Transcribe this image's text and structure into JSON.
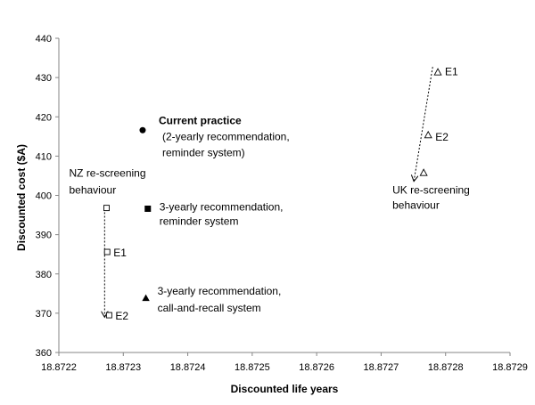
{
  "chart_data": {
    "type": "scatter",
    "title": "",
    "xlabel": "Discounted life years",
    "ylabel": "Discounted cost ($A)",
    "xlim": [
      18.8722,
      18.8729
    ],
    "ylim": [
      360,
      440
    ],
    "x_ticks": [
      "18.8722",
      "18.8723",
      "18.8724",
      "18.8725",
      "18.8726",
      "18.8727",
      "18.8728",
      "18.8729"
    ],
    "y_ticks": [
      "360",
      "370",
      "380",
      "390",
      "400",
      "410",
      "420",
      "430",
      "440"
    ],
    "x_tick_values": [
      18.8722,
      18.8723,
      18.8724,
      18.8725,
      18.8726,
      18.8727,
      18.8728,
      18.8729
    ],
    "y_tick_values": [
      360,
      370,
      380,
      390,
      400,
      410,
      420,
      430,
      440
    ],
    "grid": false,
    "points": [
      {
        "id": "current-practice",
        "x": 18.87233,
        "y": 416.6,
        "marker": "circle-filled",
        "label_lines": [
          "Current practice",
          "(2-yearly recommendation,",
          "reminder system)"
        ]
      },
      {
        "id": "3yr-reminder",
        "x": 18.872338,
        "y": 396.6,
        "marker": "square-filled",
        "label_lines": [
          "3-yearly recommendation,",
          "reminder system"
        ]
      },
      {
        "id": "3yr-call-recall",
        "x": 18.872335,
        "y": 373.8,
        "marker": "triangle-filled",
        "label_lines": [
          "3-yearly recommendation,",
          "call-and-recall system"
        ]
      },
      {
        "id": "nz-base",
        "x": 18.872274,
        "y": 396.8,
        "marker": "square-open",
        "label_lines": []
      },
      {
        "id": "nz-e1",
        "x": 18.872275,
        "y": 385.6,
        "marker": "square-open",
        "label_lines": [
          "E1"
        ]
      },
      {
        "id": "nz-e2",
        "x": 18.872278,
        "y": 369.5,
        "marker": "square-open",
        "label_lines": [
          "E2"
        ]
      },
      {
        "id": "uk-base",
        "x": 18.872766,
        "y": 405.7,
        "marker": "triangle-open",
        "label_lines": []
      },
      {
        "id": "uk-e2",
        "x": 18.872773,
        "y": 415.3,
        "marker": "triangle-open",
        "label_lines": [
          "E2"
        ]
      },
      {
        "id": "uk-e1",
        "x": 18.872788,
        "y": 431.3,
        "marker": "triangle-open",
        "label_lines": [
          "E1"
        ]
      }
    ],
    "group_labels": [
      {
        "id": "nz-group",
        "lines": [
          "NZ re-screening",
          "behaviour"
        ]
      },
      {
        "id": "uk-group",
        "lines": [
          "UK re-screening",
          "behaviour"
        ]
      }
    ],
    "arrows": [
      {
        "id": "nz-arrow",
        "from": [
          18.872271,
          397.5
        ],
        "to": [
          18.872271,
          369.2
        ],
        "style": "dashed"
      },
      {
        "id": "uk-arrow",
        "from": [
          18.87278,
          432.7
        ],
        "to": [
          18.872751,
          403.8
        ],
        "style": "dashed"
      }
    ]
  }
}
